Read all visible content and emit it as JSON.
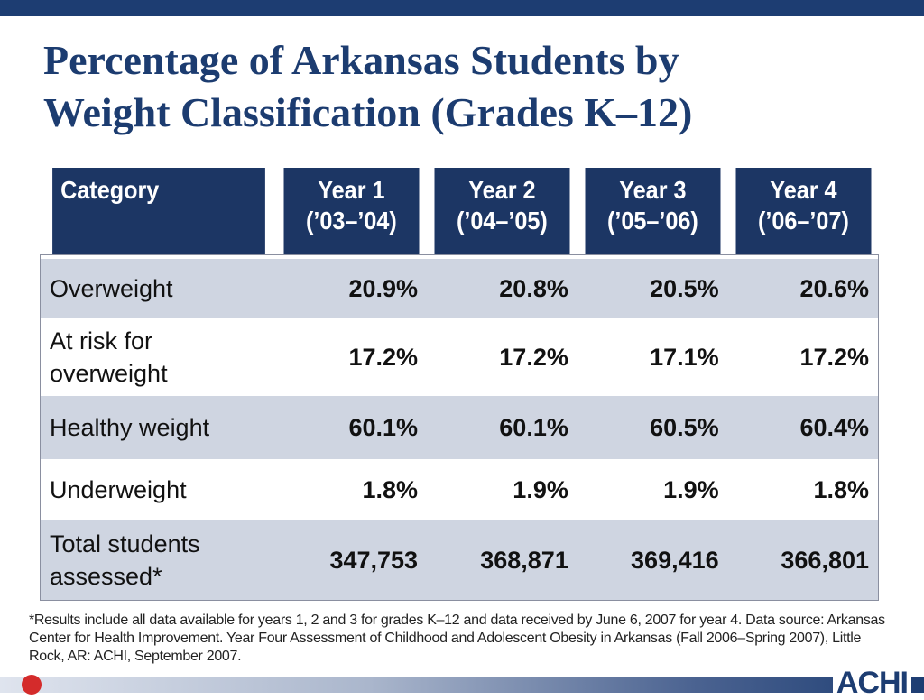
{
  "title": {
    "line1": "Percentage of Arkansas Students by",
    "line2": "Weight Classification (Grades K–12)"
  },
  "table": {
    "headers": [
      {
        "line1": "Category",
        "line2": ""
      },
      {
        "line1": "Year 1",
        "line2": "(’03–’04)"
      },
      {
        "line1": "Year 2",
        "line2": "(’04–’05)"
      },
      {
        "line1": "Year 3",
        "line2": "(’05–’06)"
      },
      {
        "line1": "Year 4",
        "line2": "(’06–’07)"
      }
    ],
    "rows": [
      {
        "label_line1": "Overweight",
        "label_line2": "",
        "values": [
          "20.9%",
          "20.8%",
          "20.5%",
          "20.6%"
        ]
      },
      {
        "label_line1": "At risk for",
        "label_line2": "overweight",
        "values": [
          "17.2%",
          "17.2%",
          "17.1%",
          "17.2%"
        ]
      },
      {
        "label_line1": "Healthy weight",
        "label_line2": "",
        "values": [
          "60.1%",
          "60.1%",
          "60.5%",
          "60.4%"
        ]
      },
      {
        "label_line1": "Underweight",
        "label_line2": "",
        "values": [
          "1.8%",
          "1.9%",
          "1.9%",
          "1.8%"
        ]
      },
      {
        "label_line1": "Total students",
        "label_line2": "assessed*",
        "values": [
          "347,753",
          "368,871",
          "369,416",
          "366,801"
        ]
      }
    ]
  },
  "footnote": "*Results include all data available for years 1, 2 and 3 for grades K–12 and data received by June 6, 2007 for year 4. Data source: Arkansas Center for Health Improvement. Year Four Assessment of Childhood and Adolescent Obesity in Arkansas (Fall 2006–Spring 2007), Little Rock, AR: ACHI, September 2007.",
  "logo": {
    "text": "ACHI"
  },
  "colors": {
    "primary": "#1c3664",
    "row_shade": "#cfd5e1",
    "accent": "#d42b2b"
  }
}
